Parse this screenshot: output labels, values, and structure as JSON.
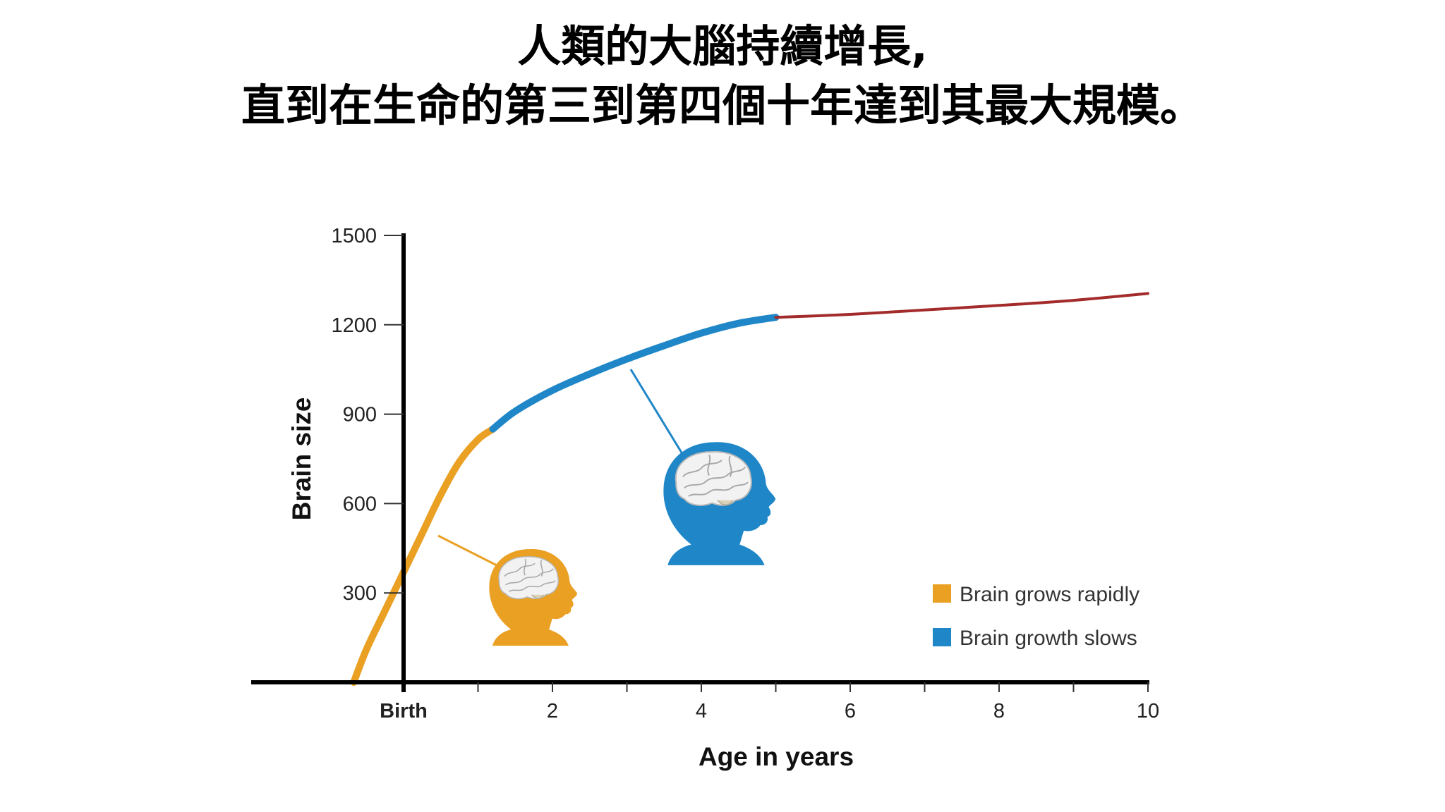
{
  "header": {
    "line1": "人類的大腦持續增長,",
    "line2": "直到在生命的第三到第四個十年達到其最大規模。"
  },
  "chart_data": {
    "type": "line",
    "title": "",
    "xlabel": "Age in years",
    "ylabel": "Brain size",
    "xlim": [
      -2,
      10
    ],
    "ylim": [
      0,
      1500
    ],
    "x_ticks": [
      0,
      1,
      2,
      3,
      4,
      5,
      6,
      7,
      8,
      9,
      10
    ],
    "x_tick_labels": [
      {
        "x": 0,
        "label": "Birth"
      },
      {
        "x": 2,
        "label": "2"
      },
      {
        "x": 4,
        "label": "4"
      },
      {
        "x": 6,
        "label": "6"
      },
      {
        "x": 8,
        "label": "8"
      },
      {
        "x": 10,
        "label": "10"
      }
    ],
    "y_ticks": [
      300,
      600,
      900,
      1200,
      1500
    ],
    "grid": false,
    "series": [
      {
        "name": "Brain grows rapidly",
        "color": "#E9A023",
        "points": [
          [
            -0.67,
            0
          ],
          [
            -0.5,
            110
          ],
          [
            -0.25,
            240
          ],
          [
            0,
            370
          ],
          [
            0.25,
            500
          ],
          [
            0.5,
            630
          ],
          [
            0.75,
            740
          ],
          [
            1.0,
            815
          ],
          [
            1.2,
            850
          ]
        ]
      },
      {
        "name": "Brain growth slows",
        "color": "#1F86C8",
        "points": [
          [
            1.2,
            850
          ],
          [
            1.5,
            910
          ],
          [
            2,
            980
          ],
          [
            2.5,
            1035
          ],
          [
            3,
            1085
          ],
          [
            3.5,
            1130
          ],
          [
            4,
            1172
          ],
          [
            4.5,
            1205
          ],
          [
            5,
            1225
          ]
        ]
      },
      {
        "name": "",
        "color": "#A32B2B",
        "points": [
          [
            5,
            1225
          ],
          [
            6,
            1235
          ],
          [
            7,
            1250
          ],
          [
            8,
            1265
          ],
          [
            9,
            1282
          ],
          [
            10,
            1305
          ]
        ]
      }
    ],
    "legend": {
      "position": "bottom-right",
      "entries": [
        {
          "label": "Brain grows rapidly",
          "color": "#E9A023"
        },
        {
          "label": "Brain growth slows",
          "color": "#1F86C8"
        }
      ]
    },
    "annotations": [
      {
        "icon": "infant-head-icon",
        "color": "#E9A023",
        "series": "Brain grows rapidly"
      },
      {
        "icon": "child-head-icon",
        "color": "#1F86C8",
        "series": "Brain growth slows"
      }
    ]
  }
}
